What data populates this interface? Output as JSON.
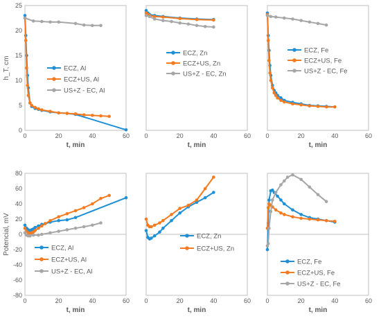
{
  "chart_data": [
    {
      "type": "line",
      "panel": "top-left",
      "xlabel": "t, min",
      "ylabel": "h_T, cm",
      "xlim": [
        0,
        60
      ],
      "ylim": [
        0,
        25
      ],
      "xticks": [
        "0",
        "20",
        "40",
        "60"
      ],
      "yticks": [
        "0",
        "5",
        "10",
        "15",
        "20",
        "25"
      ],
      "grid": false,
      "legend_position": "right-middle",
      "series": [
        {
          "name": "ECZ, Al",
          "color": "#1f8fd6",
          "x": [
            0,
            0.5,
            1,
            1.5,
            2,
            3,
            4,
            6,
            8,
            10,
            15,
            20,
            25,
            30,
            60
          ],
          "y": [
            23,
            19,
            15,
            11,
            8.5,
            5.5,
            4.8,
            4.4,
            4.2,
            4.0,
            3.7,
            3.5,
            3.4,
            3.2,
            0.1
          ]
        },
        {
          "name": "ECZ+US, Al",
          "color": "#f47b20",
          "x": [
            0,
            0.5,
            1,
            1.5,
            2,
            3,
            4,
            6,
            8,
            10,
            15,
            20,
            25,
            30,
            35,
            40,
            45,
            50
          ],
          "y": [
            22.5,
            18,
            12.5,
            9,
            7,
            5.5,
            5.0,
            4.6,
            4.3,
            4.1,
            3.8,
            3.5,
            3.4,
            3.3,
            3.1,
            3.0,
            2.9,
            2.8
          ]
        },
        {
          "name": "US+Z - EC, Al",
          "color": "#a6a6a6",
          "x": [
            0,
            5,
            10,
            15,
            20,
            30,
            35,
            40,
            45
          ],
          "y": [
            22.5,
            21.9,
            21.8,
            21.7,
            21.7,
            21.4,
            21.1,
            21.0,
            21.0
          ]
        }
      ]
    },
    {
      "type": "line",
      "panel": "top-middle",
      "xlabel": "t, min",
      "xlim": [
        0,
        60
      ],
      "ylim": [
        0,
        25
      ],
      "xticks": [
        "0",
        "20",
        "40",
        "60"
      ],
      "grid": false,
      "legend_position": "middle",
      "series": [
        {
          "name": "ECZ, Zn",
          "color": "#1f8fd6",
          "x": [
            0,
            1,
            2,
            5,
            10,
            20,
            30,
            40
          ],
          "y": [
            24,
            23.5,
            23.2,
            23,
            22.8,
            22.5,
            22.3,
            22.2
          ]
        },
        {
          "name": "ECZ+US, Zn",
          "color": "#f47b20",
          "x": [
            0,
            1,
            2,
            5,
            10,
            20,
            30,
            40
          ],
          "y": [
            23.5,
            23.2,
            23.0,
            22.8,
            22.7,
            22.4,
            22.2,
            22.1
          ]
        },
        {
          "name": "US+Z - EC, Zn",
          "color": "#a6a6a6",
          "x": [
            0,
            2,
            5,
            10,
            15,
            20,
            25,
            30,
            35,
            40
          ],
          "y": [
            23,
            22.8,
            22.3,
            22.0,
            21.8,
            21.5,
            21.3,
            21.0,
            20.8,
            20.7
          ]
        }
      ]
    },
    {
      "type": "line",
      "panel": "top-right",
      "xlabel": "t, min",
      "xlim": [
        0,
        60
      ],
      "ylim": [
        0,
        25
      ],
      "xticks": [
        "0",
        "20",
        "40",
        "60"
      ],
      "grid": false,
      "legend_position": "top-right",
      "series": [
        {
          "name": "ECZ, Fe",
          "color": "#1f8fd6",
          "x": [
            0,
            0.5,
            1,
            1.5,
            2,
            3,
            4,
            5,
            6,
            8,
            10,
            15,
            20,
            25,
            30,
            35,
            40
          ],
          "y": [
            23.5,
            19,
            16,
            13,
            11,
            9,
            8,
            7.5,
            7,
            6.5,
            6.0,
            5.6,
            5.3,
            5.0,
            4.9,
            4.8,
            4.7
          ]
        },
        {
          "name": "ECZ+US, Fe",
          "color": "#f47b20",
          "x": [
            0,
            0.5,
            1,
            1.5,
            2,
            3,
            4,
            5,
            6,
            8,
            10,
            15,
            20,
            25,
            30,
            35,
            40
          ],
          "y": [
            23.2,
            18,
            14,
            11.5,
            10,
            8.5,
            7.5,
            7.0,
            6.5,
            6.0,
            5.7,
            5.3,
            5.1,
            4.9,
            4.8,
            4.7,
            4.7
          ]
        },
        {
          "name": "US+Z - EC, Fe",
          "color": "#a6a6a6",
          "x": [
            0,
            2,
            5,
            10,
            15,
            20,
            25,
            30,
            35
          ],
          "y": [
            23,
            22.8,
            22.7,
            22.5,
            22.3,
            22.0,
            21.7,
            21.4,
            21.1
          ]
        }
      ]
    },
    {
      "type": "line",
      "panel": "bottom-left",
      "xlabel": "t, min",
      "ylabel": "Potencial, mV",
      "xlim": [
        0,
        60
      ],
      "ylim": [
        -80,
        80
      ],
      "xticks": [
        "0",
        "20",
        "40",
        "60"
      ],
      "yticks": [
        "-80",
        "-60",
        "-40",
        "-20",
        "0",
        "20",
        "40",
        "60",
        "80"
      ],
      "grid": false,
      "legend_position": "bottom-left",
      "series": [
        {
          "name": "ECZ, Al",
          "color": "#1f8fd6",
          "x": [
            0,
            1,
            2,
            3,
            4,
            5,
            6,
            8,
            10,
            12,
            15,
            20,
            25,
            30,
            60
          ],
          "y": [
            12,
            8,
            6,
            5,
            6,
            7,
            9,
            11,
            13,
            14,
            16,
            18,
            19,
            22,
            48
          ]
        },
        {
          "name": "ECZ+US, Al",
          "color": "#f47b20",
          "x": [
            0,
            1,
            2,
            3,
            4,
            5,
            6,
            8,
            10,
            12,
            15,
            20,
            25,
            30,
            35,
            40,
            45,
            50
          ],
          "y": [
            8,
            4,
            2,
            1,
            2,
            3,
            5,
            8,
            11,
            14,
            18,
            23,
            27,
            31,
            35,
            40,
            47,
            51
          ]
        },
        {
          "name": "US+Z - EC, Al",
          "color": "#a6a6a6",
          "x": [
            0,
            1,
            2,
            3,
            5,
            8,
            10,
            15,
            20,
            25,
            30,
            35,
            40,
            45
          ],
          "y": [
            2,
            -1,
            -2,
            -2,
            -1,
            -1,
            0,
            2,
            4,
            6,
            8,
            10,
            12,
            15
          ]
        }
      ]
    },
    {
      "type": "line",
      "panel": "bottom-middle",
      "xlabel": "t, min",
      "xlim": [
        0,
        60
      ],
      "ylim": [
        -80,
        80
      ],
      "xticks": [
        "0",
        "20",
        "40",
        "60"
      ],
      "grid": false,
      "legend_position": "bottom-middle",
      "series": [
        {
          "name": "ECZ, Zn",
          "color": "#1f8fd6",
          "x": [
            0,
            1,
            2,
            3,
            5,
            8,
            10,
            15,
            20,
            25,
            30,
            35,
            40
          ],
          "y": [
            5,
            -4,
            -6,
            -5,
            -2,
            3,
            8,
            18,
            28,
            36,
            42,
            48,
            55
          ]
        },
        {
          "name": "ECZ+US, Zn",
          "color": "#f47b20",
          "x": [
            0,
            1,
            2,
            3,
            5,
            8,
            10,
            15,
            20,
            25,
            30,
            35,
            40
          ],
          "y": [
            20,
            12,
            10,
            10,
            12,
            15,
            18,
            26,
            34,
            38,
            45,
            60,
            75
          ]
        }
      ]
    },
    {
      "type": "line",
      "panel": "bottom-right",
      "xlabel": "t, min",
      "xlim": [
        0,
        60
      ],
      "ylim": [
        -80,
        80
      ],
      "xticks": [
        "0",
        "20",
        "40",
        "60"
      ],
      "grid": false,
      "legend_position": "bottom-middle",
      "series": [
        {
          "name": "ECZ, Fe",
          "color": "#1f8fd6",
          "x": [
            0,
            0.5,
            1,
            2,
            3,
            4,
            6,
            8,
            10,
            15,
            20,
            25,
            30,
            35,
            40
          ],
          "y": [
            -20,
            15,
            45,
            57,
            58,
            55,
            50,
            45,
            40,
            32,
            26,
            22,
            20,
            18,
            16
          ]
        },
        {
          "name": "ECZ+US, Fe",
          "color": "#f47b20",
          "x": [
            0,
            0.5,
            1,
            2,
            3,
            5,
            8,
            10,
            15,
            20,
            25,
            30,
            35,
            40
          ],
          "y": [
            8,
            35,
            40,
            38,
            36,
            32,
            28,
            26,
            23,
            21,
            20,
            19,
            18,
            17
          ]
        },
        {
          "name": "US+Z - EC, Fe",
          "color": "#a6a6a6",
          "x": [
            0,
            0.5,
            1,
            2,
            3,
            5,
            8,
            10,
            12,
            15,
            20,
            25,
            30,
            35
          ],
          "y": [
            -15,
            -12,
            8,
            30,
            45,
            55,
            65,
            70,
            75,
            78,
            72,
            62,
            52,
            43
          ]
        }
      ]
    }
  ]
}
